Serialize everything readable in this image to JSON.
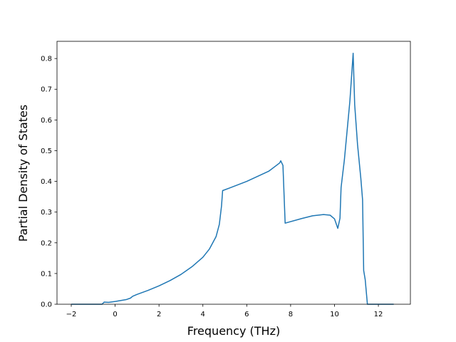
{
  "chart_data": {
    "type": "line",
    "xlabel": "Frequency (THz)",
    "ylabel": "Partial Density of States",
    "x": [
      -2.0,
      -0.6,
      -0.5,
      -0.3,
      0,
      0.5,
      0.7,
      0.8,
      1.0,
      1.5,
      2,
      2.5,
      3,
      3.5,
      4,
      4.3,
      4.6,
      4.75,
      4.85,
      4.9,
      5.2,
      6,
      7,
      7.5,
      7.55,
      7.65,
      7.75,
      8.5,
      9,
      9.5,
      9.8,
      10,
      10.15,
      10.25,
      10.3,
      10.45,
      10.7,
      10.85,
      10.92,
      11.05,
      11.2,
      11.28,
      11.33,
      11.4,
      11.5,
      12.7
    ],
    "series": [
      {
        "color": "#1f77b4",
        "values": [
          0,
          0,
          0.007,
          0.006,
          0.009,
          0.015,
          0.02,
          0.026,
          0.032,
          0.045,
          0.06,
          0.077,
          0.097,
          0.122,
          0.153,
          0.18,
          0.22,
          0.26,
          0.32,
          0.37,
          0.378,
          0.4,
          0.433,
          0.46,
          0.467,
          0.452,
          0.264,
          0.279,
          0.288,
          0.292,
          0.29,
          0.278,
          0.247,
          0.28,
          0.38,
          0.47,
          0.66,
          0.817,
          0.65,
          0.52,
          0.41,
          0.34,
          0.11,
          0.08,
          0,
          0
        ]
      }
    ],
    "xlim": [
      -2.65,
      13.46
    ],
    "ylim": [
      0,
      0.856
    ],
    "xticks": [
      {
        "value": -2,
        "label": "−2"
      },
      0,
      2,
      4,
      6,
      8,
      10,
      12
    ],
    "yticks": [
      {
        "value": 0,
        "label": "0.0"
      },
      0.1,
      0.2,
      0.3,
      0.4,
      0.5,
      0.6,
      0.7,
      0.8
    ]
  }
}
